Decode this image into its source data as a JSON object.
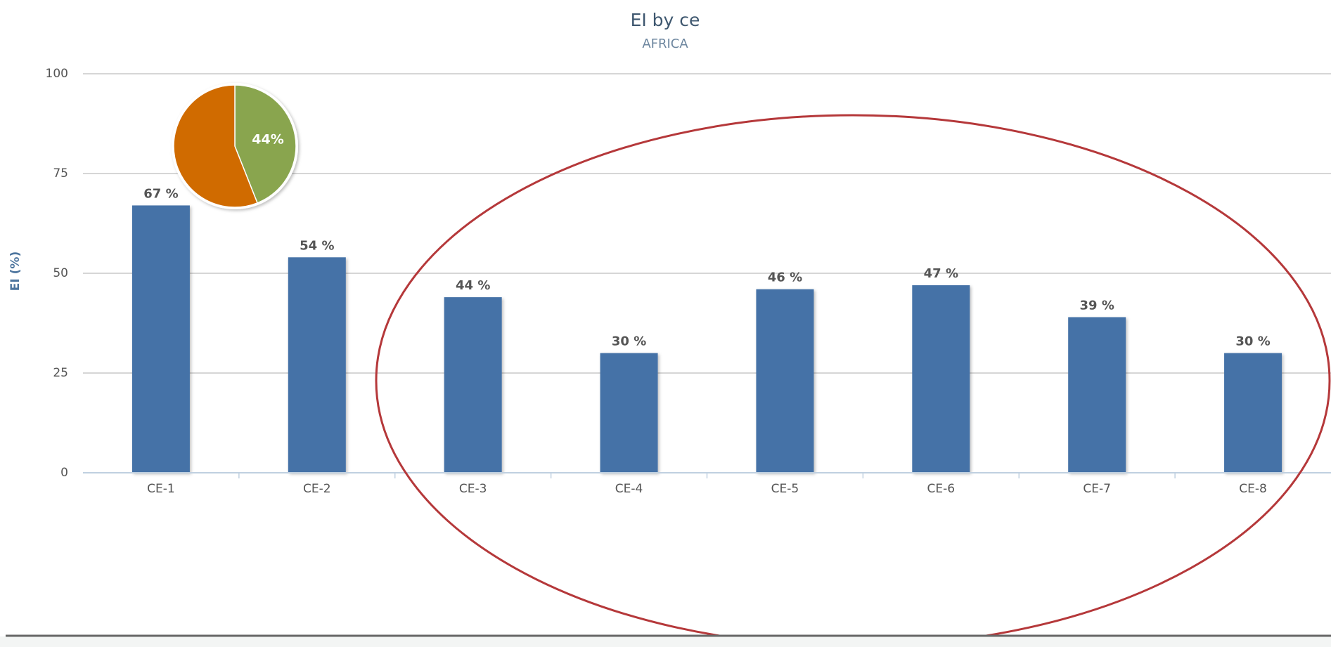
{
  "chart_data": [
    {
      "type": "bar",
      "title": "EI by ce",
      "subtitle": "AFRICA",
      "y_label": "EI (%)",
      "categories": [
        "CE-1",
        "CE-2",
        "CE-3",
        "CE-4",
        "CE-5",
        "CE-6",
        "CE-7",
        "CE-8"
      ],
      "values": [
        67,
        54,
        44,
        30,
        46,
        47,
        39,
        30
      ],
      "value_labels": [
        "67 %",
        "54 %",
        "44 %",
        "30 %",
        "46 %",
        "47 %",
        "39 %",
        "30 %"
      ],
      "color": "#4572a7",
      "ylim": [
        0,
        100
      ],
      "yticks": [
        0,
        25,
        50,
        75,
        100
      ],
      "grid": true
    },
    {
      "type": "pie",
      "values": [
        44,
        56
      ],
      "value_labels": [
        "44%",
        null
      ],
      "colors": [
        "#89a54e",
        "#d06b00"
      ]
    }
  ]
}
